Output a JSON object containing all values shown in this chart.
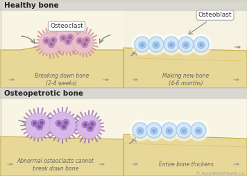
{
  "bg_top": "#f0f0ec",
  "bg_main": "#f8f5e4",
  "bone_color": "#e8d898",
  "bone_color2": "#d4c070",
  "bone_edge": "#c8a840",
  "healthy_label": "Healthy bone",
  "osteo_label": "Osteopetrotic bone",
  "osteoclast_label": "Osteoclast",
  "osteoblast_label": "Osteoblast",
  "breaking_label": "Breaking down bone\n(2-4 weeks)",
  "making_label": "Making new bone\n(4-6 months)",
  "abnormal_label": "Abnormal osteoclasts cannot\nbreak down bone",
  "thickens_label": "Entire bone thickens",
  "copyright": "© AboutKidsHealth.ca",
  "arrow_color": "#999999",
  "text_color": "#666666",
  "cell_pink_outer": "#e8c0cc",
  "cell_pink_body": "#dda8ba",
  "cell_pink_nucleus": "#c890b8",
  "cell_pink_dot": "#9860a0",
  "cell_purple_outer": "#d8b8e8",
  "cell_purple_body": "#c8a0d8",
  "cell_purple_nucleus": "#b080c8",
  "cell_purple_dot": "#7850a0",
  "cell_blue_outer": "#d0e8f8",
  "cell_blue_body": "#a8ccec",
  "cell_blue_nucleus": "#88aadc",
  "cell_blue_dot": "#6688cc",
  "fringe_pink": "#cc8898",
  "fringe_purple": "#9870b8",
  "header_bar": "#d8d8d0",
  "divider": "#cccccc",
  "label_border": "#aaaaaa",
  "border_color": "#ccccaa"
}
